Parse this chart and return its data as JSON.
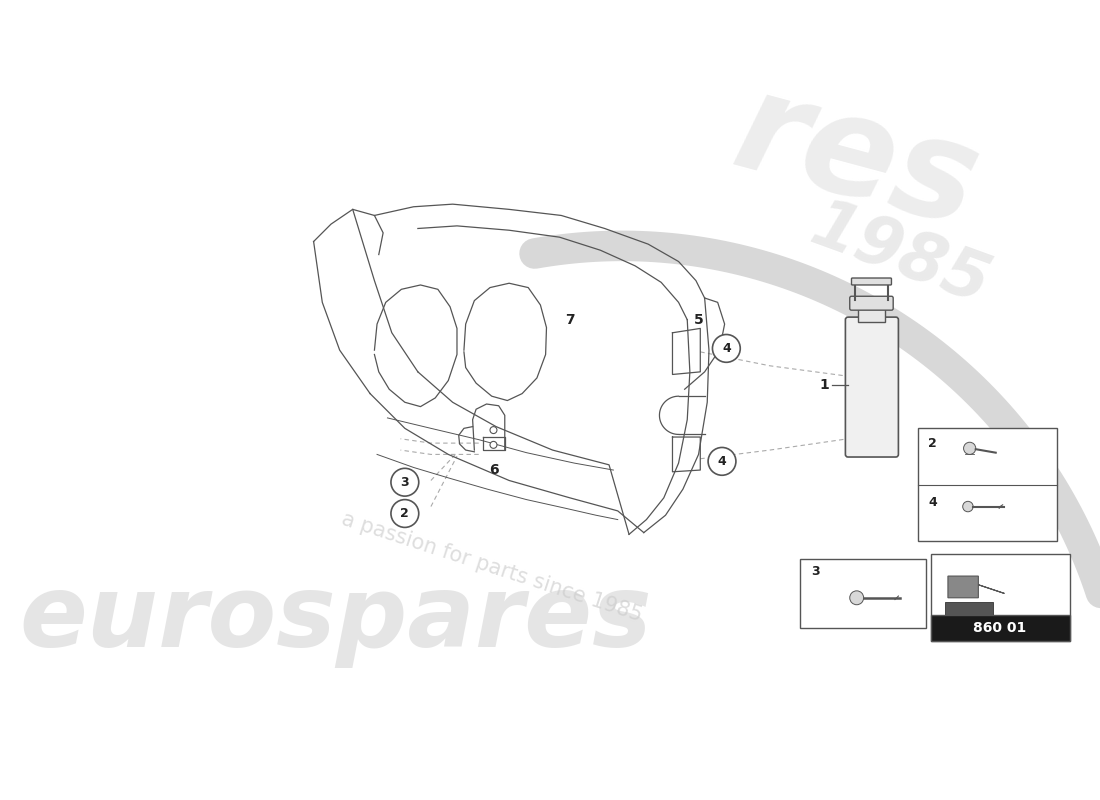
{
  "bg_color": "#ffffff",
  "line_color": "#555555",
  "dash_color": "#aaaaaa",
  "watermark1": "eurospares",
  "watermark2": "a passion for parts since 1985",
  "part_number": "860 01"
}
